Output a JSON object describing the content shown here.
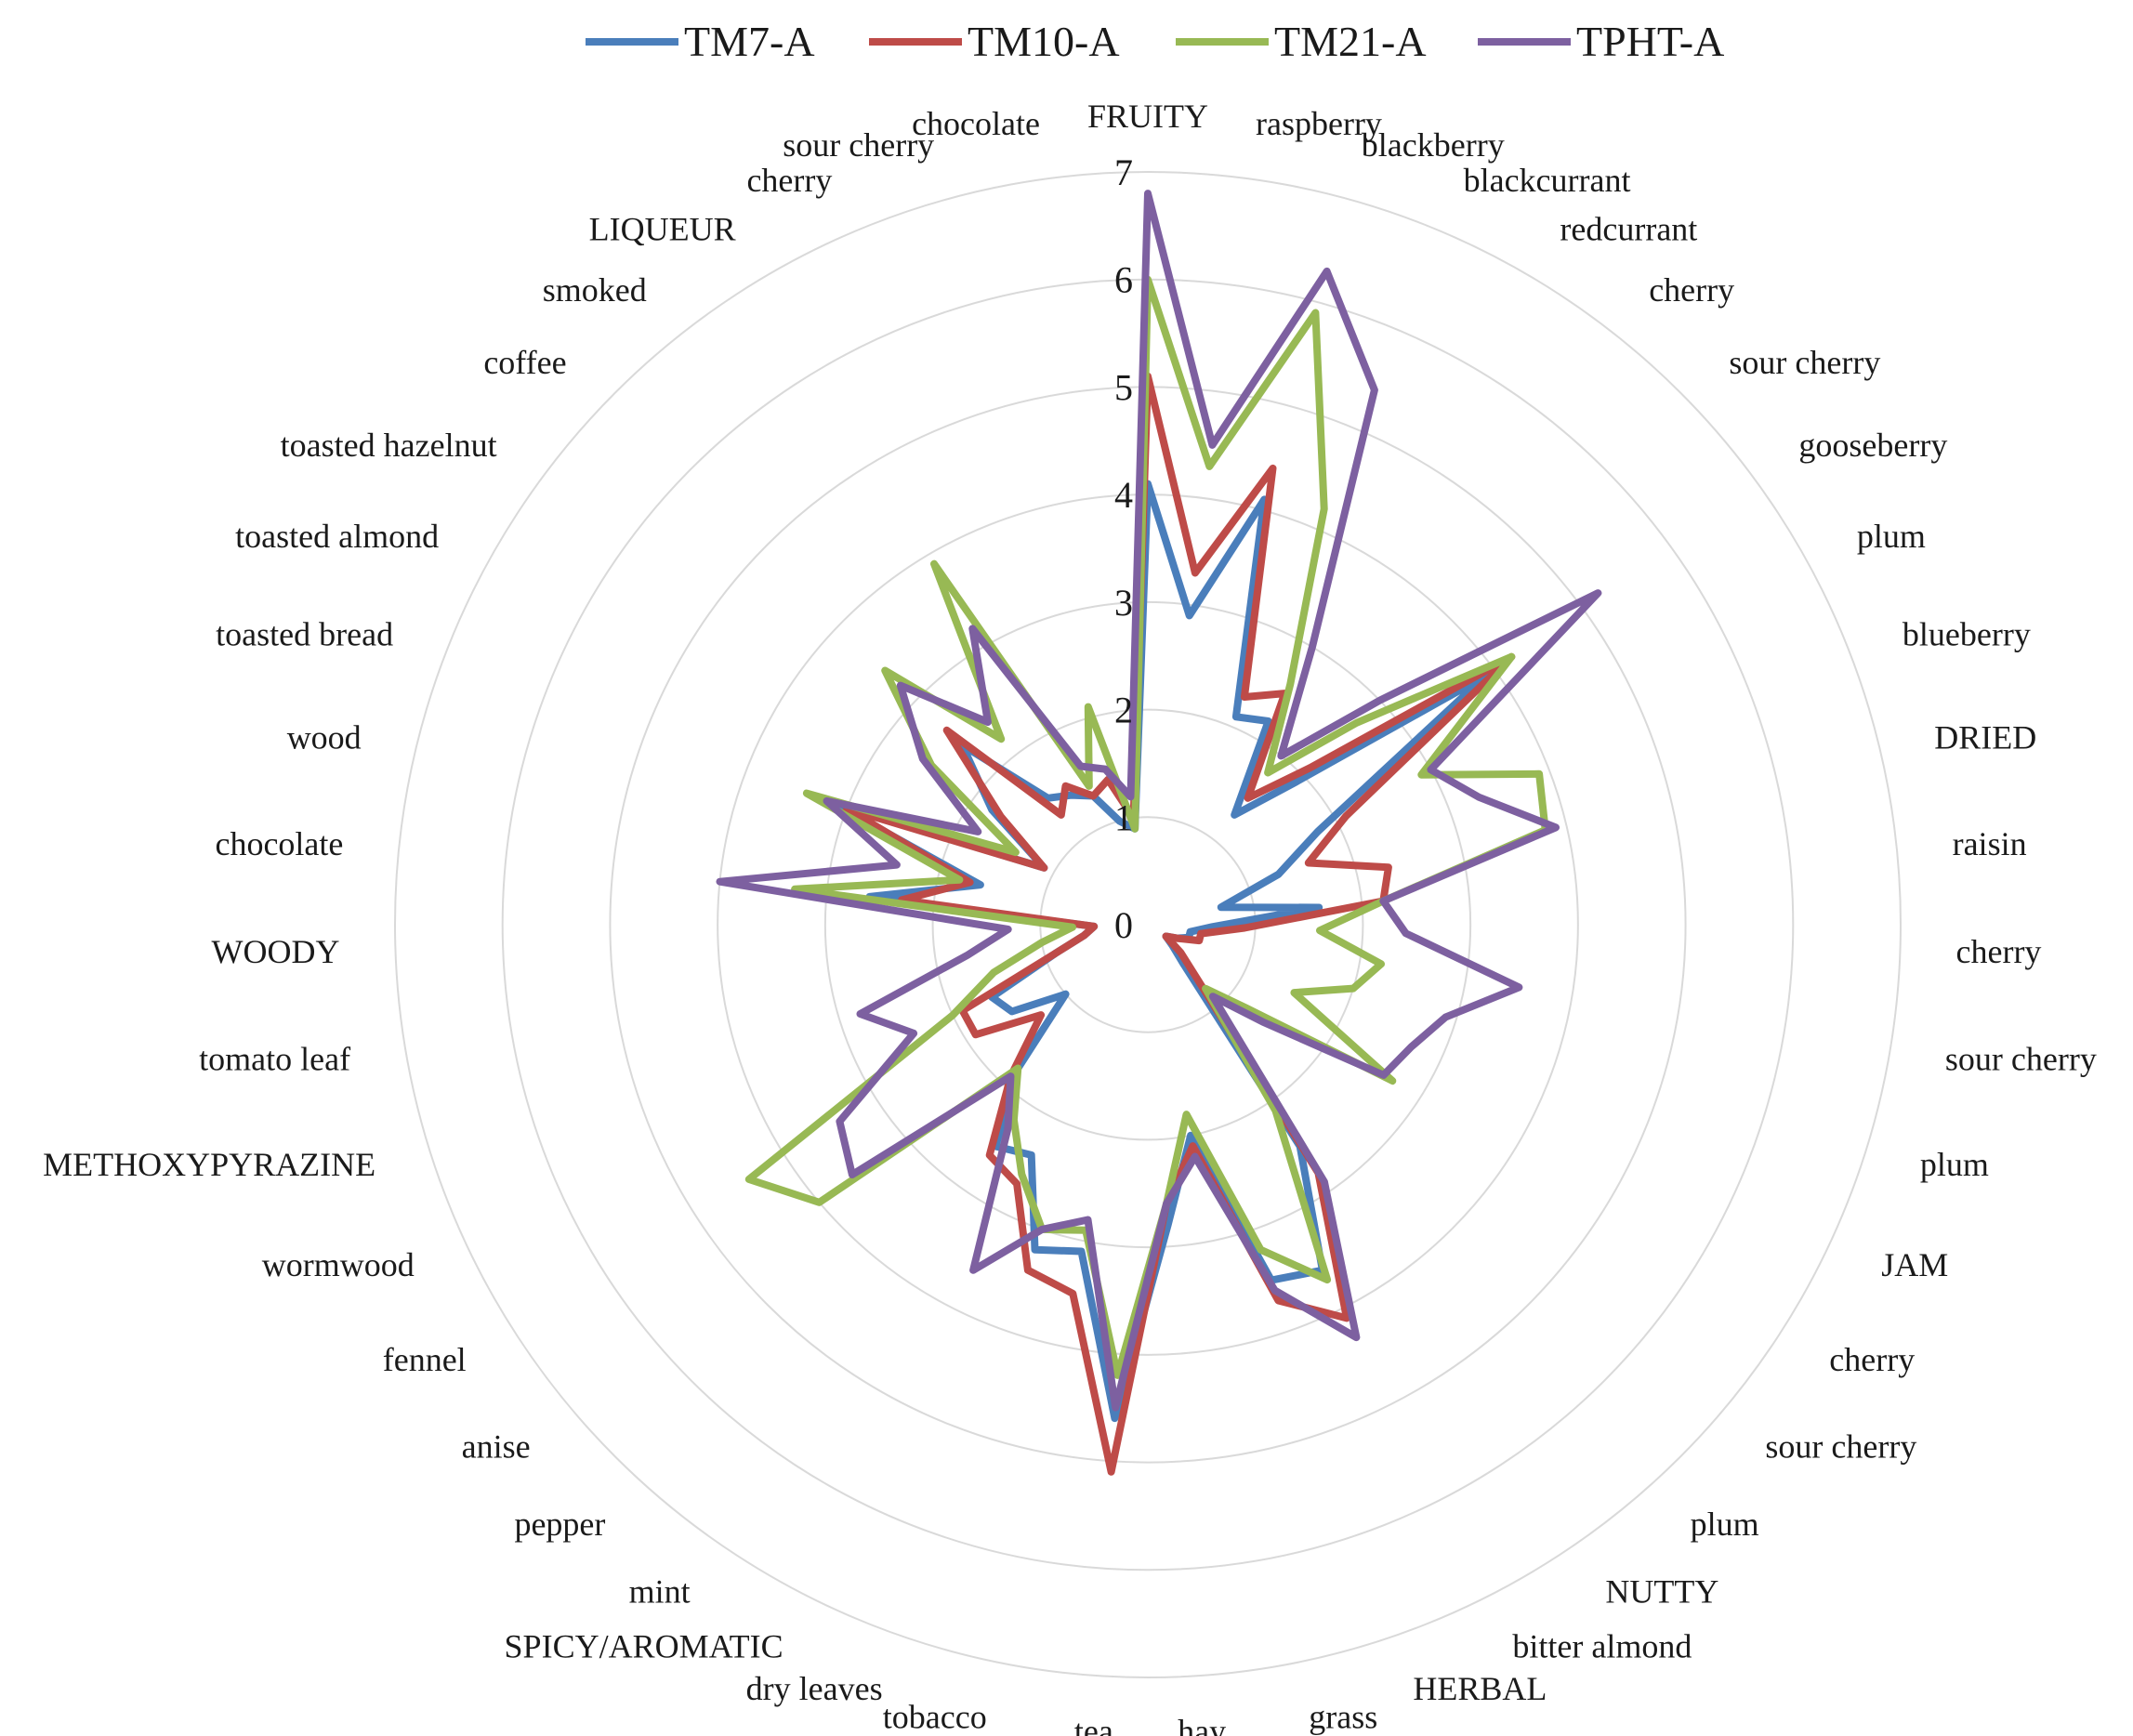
{
  "chart_data": {
    "type": "radar",
    "title": "",
    "rlim": [
      0,
      7
    ],
    "ticks": [
      "0",
      "1",
      "2",
      "3",
      "4",
      "5",
      "6",
      "7"
    ],
    "legend_position": "top",
    "categories": [
      "FRUITY",
      "raspberry",
      "blackberry",
      "blackcurrant",
      "redcurrant",
      "cherry",
      "sour cherry",
      "gooseberry",
      "plum",
      "blueberry",
      "DRIED",
      "raisin",
      "cherry",
      "sour cherry",
      "plum",
      "JAM",
      "cherry",
      "sour cherry",
      "plum",
      "NUTTY",
      "bitter almond",
      "HERBAL",
      "grass",
      "hay",
      "tea",
      "tobacco",
      "dry leaves",
      "SPICY/AROMATIC",
      "mint",
      "pepper",
      "anise",
      "fennel",
      "wormwood",
      "METHOXYPYRAZINE",
      "tomato leaf",
      "WOODY",
      "chocolate",
      "wood",
      "toasted bread",
      "toasted almond",
      "toasted hazelnut",
      "coffee",
      "smoked",
      "LIQUEUR",
      "cherry",
      "sour cherry",
      "chocolate"
    ],
    "series": [
      {
        "name": "TM7-A",
        "color": "#4a7ebb",
        "values": [
          4.1,
          2.9,
          4.1,
          2.1,
          2.2,
          1.3,
          1.9,
          3.9,
          1.8,
          1.3,
          0.7,
          1.6,
          0.6,
          0.4,
          0.4,
          0.3,
          0.2,
          0.3,
          0.5,
          2.5,
          3.6,
          3.5,
          2.0,
          2.8,
          4.6,
          3.1,
          3.2,
          2.4,
          2.5,
          1.8,
          1.0,
          1.5,
          1.6,
          0.9,
          0.6,
          0.5,
          2.6,
          1.6,
          3.1,
          1.1,
          1.8,
          2.4,
          1.5,
          1.4,
          1.3,
          1.0,
          0.9
        ]
      },
      {
        "name": "TM10-A",
        "color": "#be4b48",
        "values": [
          5.1,
          3.3,
          4.4,
          2.3,
          2.5,
          1.5,
          2.1,
          4.2,
          2.1,
          1.6,
          2.3,
          2.2,
          0.9,
          0.5,
          0.5,
          0.3,
          0.2,
          0.4,
          0.7,
          2.8,
          4.1,
          3.7,
          2.1,
          2.6,
          5.1,
          3.5,
          3.4,
          2.7,
          2.6,
          1.9,
          1.3,
          1.9,
          1.9,
          0.9,
          0.6,
          0.5,
          2.3,
          1.7,
          3.0,
          1.1,
          1.7,
          2.6,
          1.3,
          1.5,
          1.3,
          1.4,
          1.0
        ]
      },
      {
        "name": "TM21-A",
        "color": "#98b954",
        "values": [
          6.0,
          4.3,
          5.9,
          4.2,
          2.6,
          1.8,
          2.7,
          4.2,
          2.9,
          3.9,
          3.8,
          2.2,
          1.6,
          2.2,
          2.0,
          1.5,
          2.7,
          1.2,
          0.8,
          2.1,
          3.7,
          3.2,
          1.8,
          2.6,
          4.2,
          2.9,
          3.0,
          2.6,
          2.2,
          1.8,
          4.0,
          4.4,
          2.0,
          1.5,
          1.0,
          0.7,
          3.3,
          1.8,
          3.4,
          1.4,
          2.5,
          3.4,
          2.2,
          3.9,
          1.4,
          2.1,
          0.9
        ]
      },
      {
        "name": "TPHT-A",
        "color": "#7d60a0",
        "values": [
          6.8,
          4.5,
          6.3,
          5.4,
          3.0,
          2.0,
          3.0,
          5.2,
          3.0,
          3.3,
          3.9,
          2.2,
          2.4,
          3.5,
          2.9,
          2.7,
          2.6,
          1.4,
          0.9,
          2.9,
          4.3,
          3.6,
          2.2,
          2.6,
          4.5,
          2.8,
          3.0,
          3.6,
          2.3,
          1.9,
          3.6,
          3.4,
          2.4,
          2.8,
          1.7,
          1.3,
          4.0,
          2.4,
          3.2,
          1.8,
          2.6,
          3.2,
          2.4,
          3.2,
          1.6,
          1.5,
          1.2
        ]
      }
    ]
  }
}
